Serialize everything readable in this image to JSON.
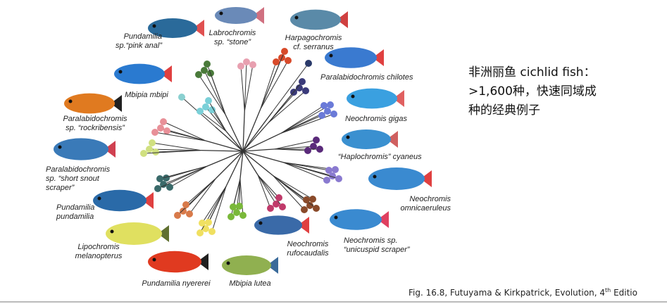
{
  "figure": {
    "labels": [
      {
        "lines": [
          "Pundamilia",
          "sp.“pink anal”"
        ]
      },
      {
        "lines": [
          "Labrochromis",
          "sp. “stone”"
        ]
      },
      {
        "lines": [
          "Harpagochromis",
          "cf. serranus"
        ]
      },
      {
        "lines": [
          "Paralabidochromis chilotes"
        ]
      },
      {
        "lines": [
          "Mbipia mbipi"
        ]
      },
      {
        "lines": [
          "Neochromis gigas"
        ]
      },
      {
        "lines": [
          "Paralabidochromis",
          "sp. “rockribensis”"
        ]
      },
      {
        "lines": [
          "“Haplochromis” cyaneus"
        ]
      },
      {
        "lines": [
          "Paralabidochromis",
          "sp. “short snout",
          "scraper”"
        ]
      },
      {
        "lines": [
          "Neochromis",
          "omnicaeruleus"
        ]
      },
      {
        "lines": [
          "Pundamilia",
          "pundamilia"
        ]
      },
      {
        "lines": [
          "Neochromis sp.",
          "“unicuspid scraper”"
        ]
      },
      {
        "lines": [
          "Neochromis",
          "rufocaudalis"
        ]
      },
      {
        "lines": [
          "Lipochromis",
          "melanopterus"
        ]
      },
      {
        "lines": [
          "Pundamilia nyererei"
        ]
      },
      {
        "lines": [
          "Mbipia lutea"
        ]
      }
    ]
  },
  "note": {
    "lines": [
      "非洲丽鱼 cichlid fish：",
      ">1,600种，快速同域成",
      "种的经典例子"
    ]
  },
  "caption": {
    "text": "Fig. 16.8, Futuyama & Kirkpatrick, Evolution, 4",
    "superscript": "th",
    "tail": " Editio"
  }
}
